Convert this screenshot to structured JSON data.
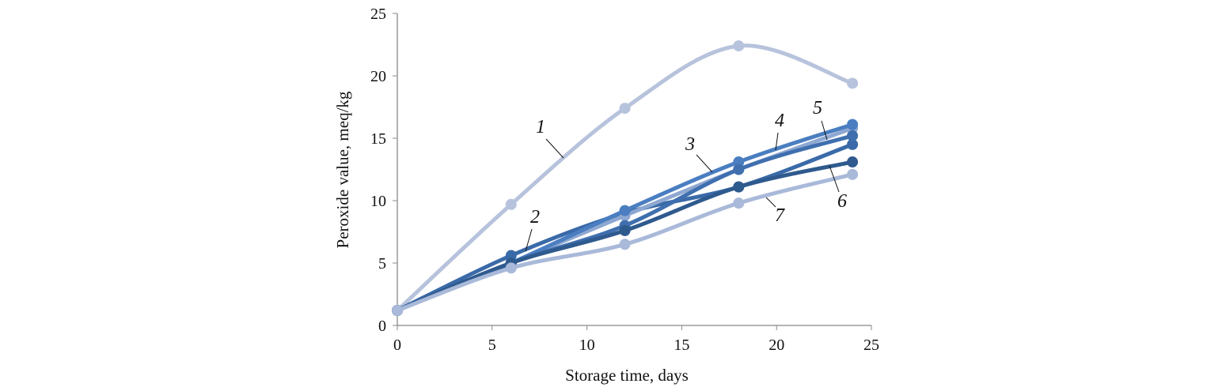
{
  "chart_data": {
    "type": "line",
    "title": "",
    "xlabel": "Storage time,  days",
    "ylabel": "Peroxide value,  meq/kg",
    "xlim": [
      0,
      25
    ],
    "ylim": [
      0,
      25
    ],
    "xticks": [
      0,
      5,
      10,
      15,
      20,
      25
    ],
    "yticks": [
      0,
      5,
      10,
      15,
      20,
      25
    ],
    "grid": false,
    "x": [
      0,
      6,
      12,
      18,
      24
    ],
    "series": [
      {
        "name": "1",
        "values": [
          1.2,
          9.7,
          17.4,
          22.4,
          19.4
        ],
        "color": "#b7c3dc"
      },
      {
        "name": "2",
        "values": [
          1.2,
          5.6,
          9.0,
          11.1,
          14.5
        ],
        "color": "#3a6aa8"
      },
      {
        "name": "3",
        "values": [
          1.2,
          5.0,
          8.8,
          12.5,
          15.8
        ],
        "color": "#8ea8d2"
      },
      {
        "name": "4",
        "values": [
          1.2,
          5.0,
          9.2,
          13.1,
          16.1
        ],
        "color": "#4a7ec1"
      },
      {
        "name": "5",
        "values": [
          1.2,
          5.0,
          8.0,
          12.5,
          15.2
        ],
        "color": "#3f6fae"
      },
      {
        "name": "6",
        "values": [
          1.2,
          5.0,
          7.6,
          11.1,
          13.1
        ],
        "color": "#2f5a8e"
      },
      {
        "name": "7",
        "values": [
          1.2,
          4.6,
          6.5,
          9.8,
          12.1
        ],
        "color": "#a9b9d9"
      }
    ]
  }
}
